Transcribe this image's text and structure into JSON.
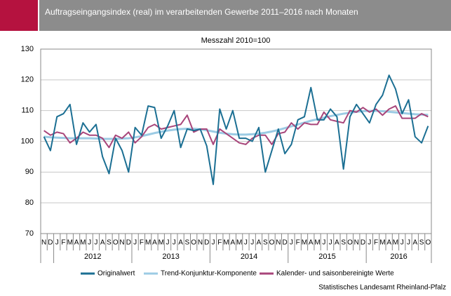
{
  "chart_data": {
    "type": "line",
    "title": "Auftragseingangsindex (real) im verarbeitenden Gewerbe 2011–2016 nach Monaten",
    "subtitle": "Messzahl 2010=100",
    "source": "Statistisches Landesamt Rheinland-Pfalz",
    "categories": [
      "N",
      "D",
      "J",
      "F",
      "M",
      "A",
      "M",
      "J",
      "J",
      "A",
      "S",
      "O",
      "N",
      "D",
      "J",
      "F",
      "M",
      "A",
      "M",
      "J",
      "J",
      "A",
      "S",
      "O",
      "N",
      "D",
      "J",
      "F",
      "M",
      "A",
      "M",
      "J",
      "J",
      "A",
      "S",
      "O",
      "N",
      "D",
      "J",
      "F",
      "M",
      "A",
      "M",
      "J",
      "J",
      "A",
      "S",
      "O",
      "N",
      "D",
      "J",
      "F",
      "M",
      "A",
      "M",
      "J",
      "J",
      "A",
      "S",
      "O"
    ],
    "year_labels": [
      "2012",
      "2013",
      "2014",
      "2015",
      "2016"
    ],
    "ylim": [
      70,
      130
    ],
    "yticks": [
      70,
      80,
      90,
      100,
      110,
      120,
      130
    ],
    "grid": true,
    "series": [
      {
        "name": "Originalwert",
        "color": "#1b6f93",
        "values": [
          101.5,
          97,
          108,
          109,
          112,
          99,
          106,
          103,
          105.5,
          95,
          89.5,
          101,
          97,
          90,
          104.5,
          102,
          111.5,
          111,
          101,
          105,
          110,
          98,
          104,
          103.5,
          104,
          98.5,
          86,
          110.5,
          104,
          110,
          101,
          101,
          100,
          104.5,
          90,
          97,
          104,
          96,
          99,
          107,
          108,
          117.5,
          107,
          107,
          110.5,
          108,
          91,
          108,
          112,
          109,
          106,
          112,
          115,
          121.5,
          117,
          109,
          113.5,
          101.5,
          99.5,
          105
        ]
      },
      {
        "name": "Trend-Konjunktur-Komponente",
        "color": "#9ccbe4",
        "values": [
          101.5,
          101.3,
          101.2,
          101.1,
          101,
          101,
          101,
          101,
          100.9,
          100.8,
          100.8,
          100.8,
          100.9,
          101,
          101.3,
          101.7,
          102.2,
          102.7,
          103.1,
          103.5,
          103.8,
          104,
          104.1,
          104.1,
          103.9,
          103.6,
          103.2,
          102.8,
          102.5,
          102.3,
          102.2,
          102.2,
          102.3,
          102.5,
          102.8,
          103.2,
          103.7,
          104.3,
          104.9,
          105.5,
          106.1,
          106.7,
          107.2,
          107.7,
          108.2,
          108.6,
          109,
          109.3,
          109.6,
          109.8,
          109.9,
          109.9,
          109.8,
          109.6,
          109.4,
          109.2,
          109,
          108.8,
          108.7,
          108.6
        ]
      },
      {
        "name": "Kalender- und saisonbereinigte Werte",
        "color": "#a8457a",
        "values": [
          103.5,
          102,
          103,
          102.5,
          99.5,
          101,
          103,
          102,
          102,
          101,
          98,
          102,
          101,
          103,
          99.5,
          101.5,
          104.5,
          105.5,
          104,
          104.5,
          105,
          105.5,
          108.5,
          103,
          104,
          104,
          99,
          104,
          102.5,
          101,
          99.5,
          99,
          101,
          102,
          102,
          99,
          102.5,
          103,
          106,
          104,
          106,
          105.5,
          105.5,
          109.5,
          107,
          106.5,
          106,
          110,
          109.5,
          111,
          109.5,
          110.5,
          108.5,
          110.5,
          111.5,
          107.5,
          107.5,
          107.5,
          109,
          108
        ]
      }
    ]
  }
}
